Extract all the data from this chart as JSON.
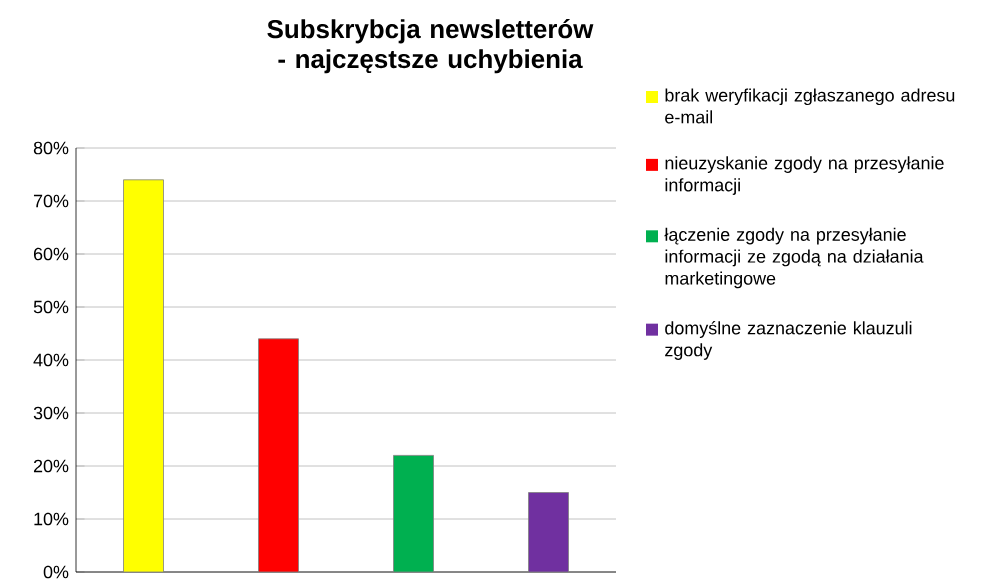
{
  "chart_data": {
    "type": "bar",
    "title": "Subskrybcja newsletterów - najczęstsze uchybienia",
    "categories": [
      null,
      null,
      null,
      null
    ],
    "series": [
      {
        "name": "brak weryfikacji zgłaszanego adresu e-mail",
        "color": "#ffff00",
        "values": [
          74,
          null,
          null,
          null
        ]
      },
      {
        "name": "nieuzyskanie zgody na przesyłanie informacji",
        "color": "#ff0000",
        "values": [
          null,
          44,
          null,
          null
        ]
      },
      {
        "name": "łączenie zgody na przesyłanie informacji ze zgodą na działania marketingowe",
        "color": "#00b050",
        "values": [
          null,
          null,
          22,
          null
        ]
      },
      {
        "name": "domyślne zaznaczenie klauzuli zgody",
        "color": "#7030a0",
        "values": [
          null,
          null,
          null,
          15
        ]
      }
    ],
    "ylim": [
      0,
      80
    ],
    "yticks": [
      {
        "value": 0,
        "label": "0%"
      },
      {
        "value": 10,
        "label": "10%"
      },
      {
        "value": 20,
        "label": "20%"
      },
      {
        "value": 30,
        "label": "30%"
      },
      {
        "value": 40,
        "label": "40%"
      },
      {
        "value": 50,
        "label": "50%"
      },
      {
        "value": 60,
        "label": "60%"
      },
      {
        "value": 70,
        "label": "70%"
      },
      {
        "value": 80,
        "label": "80%"
      }
    ],
    "grid": "y",
    "legend": "right",
    "tick_labels": "y"
  }
}
